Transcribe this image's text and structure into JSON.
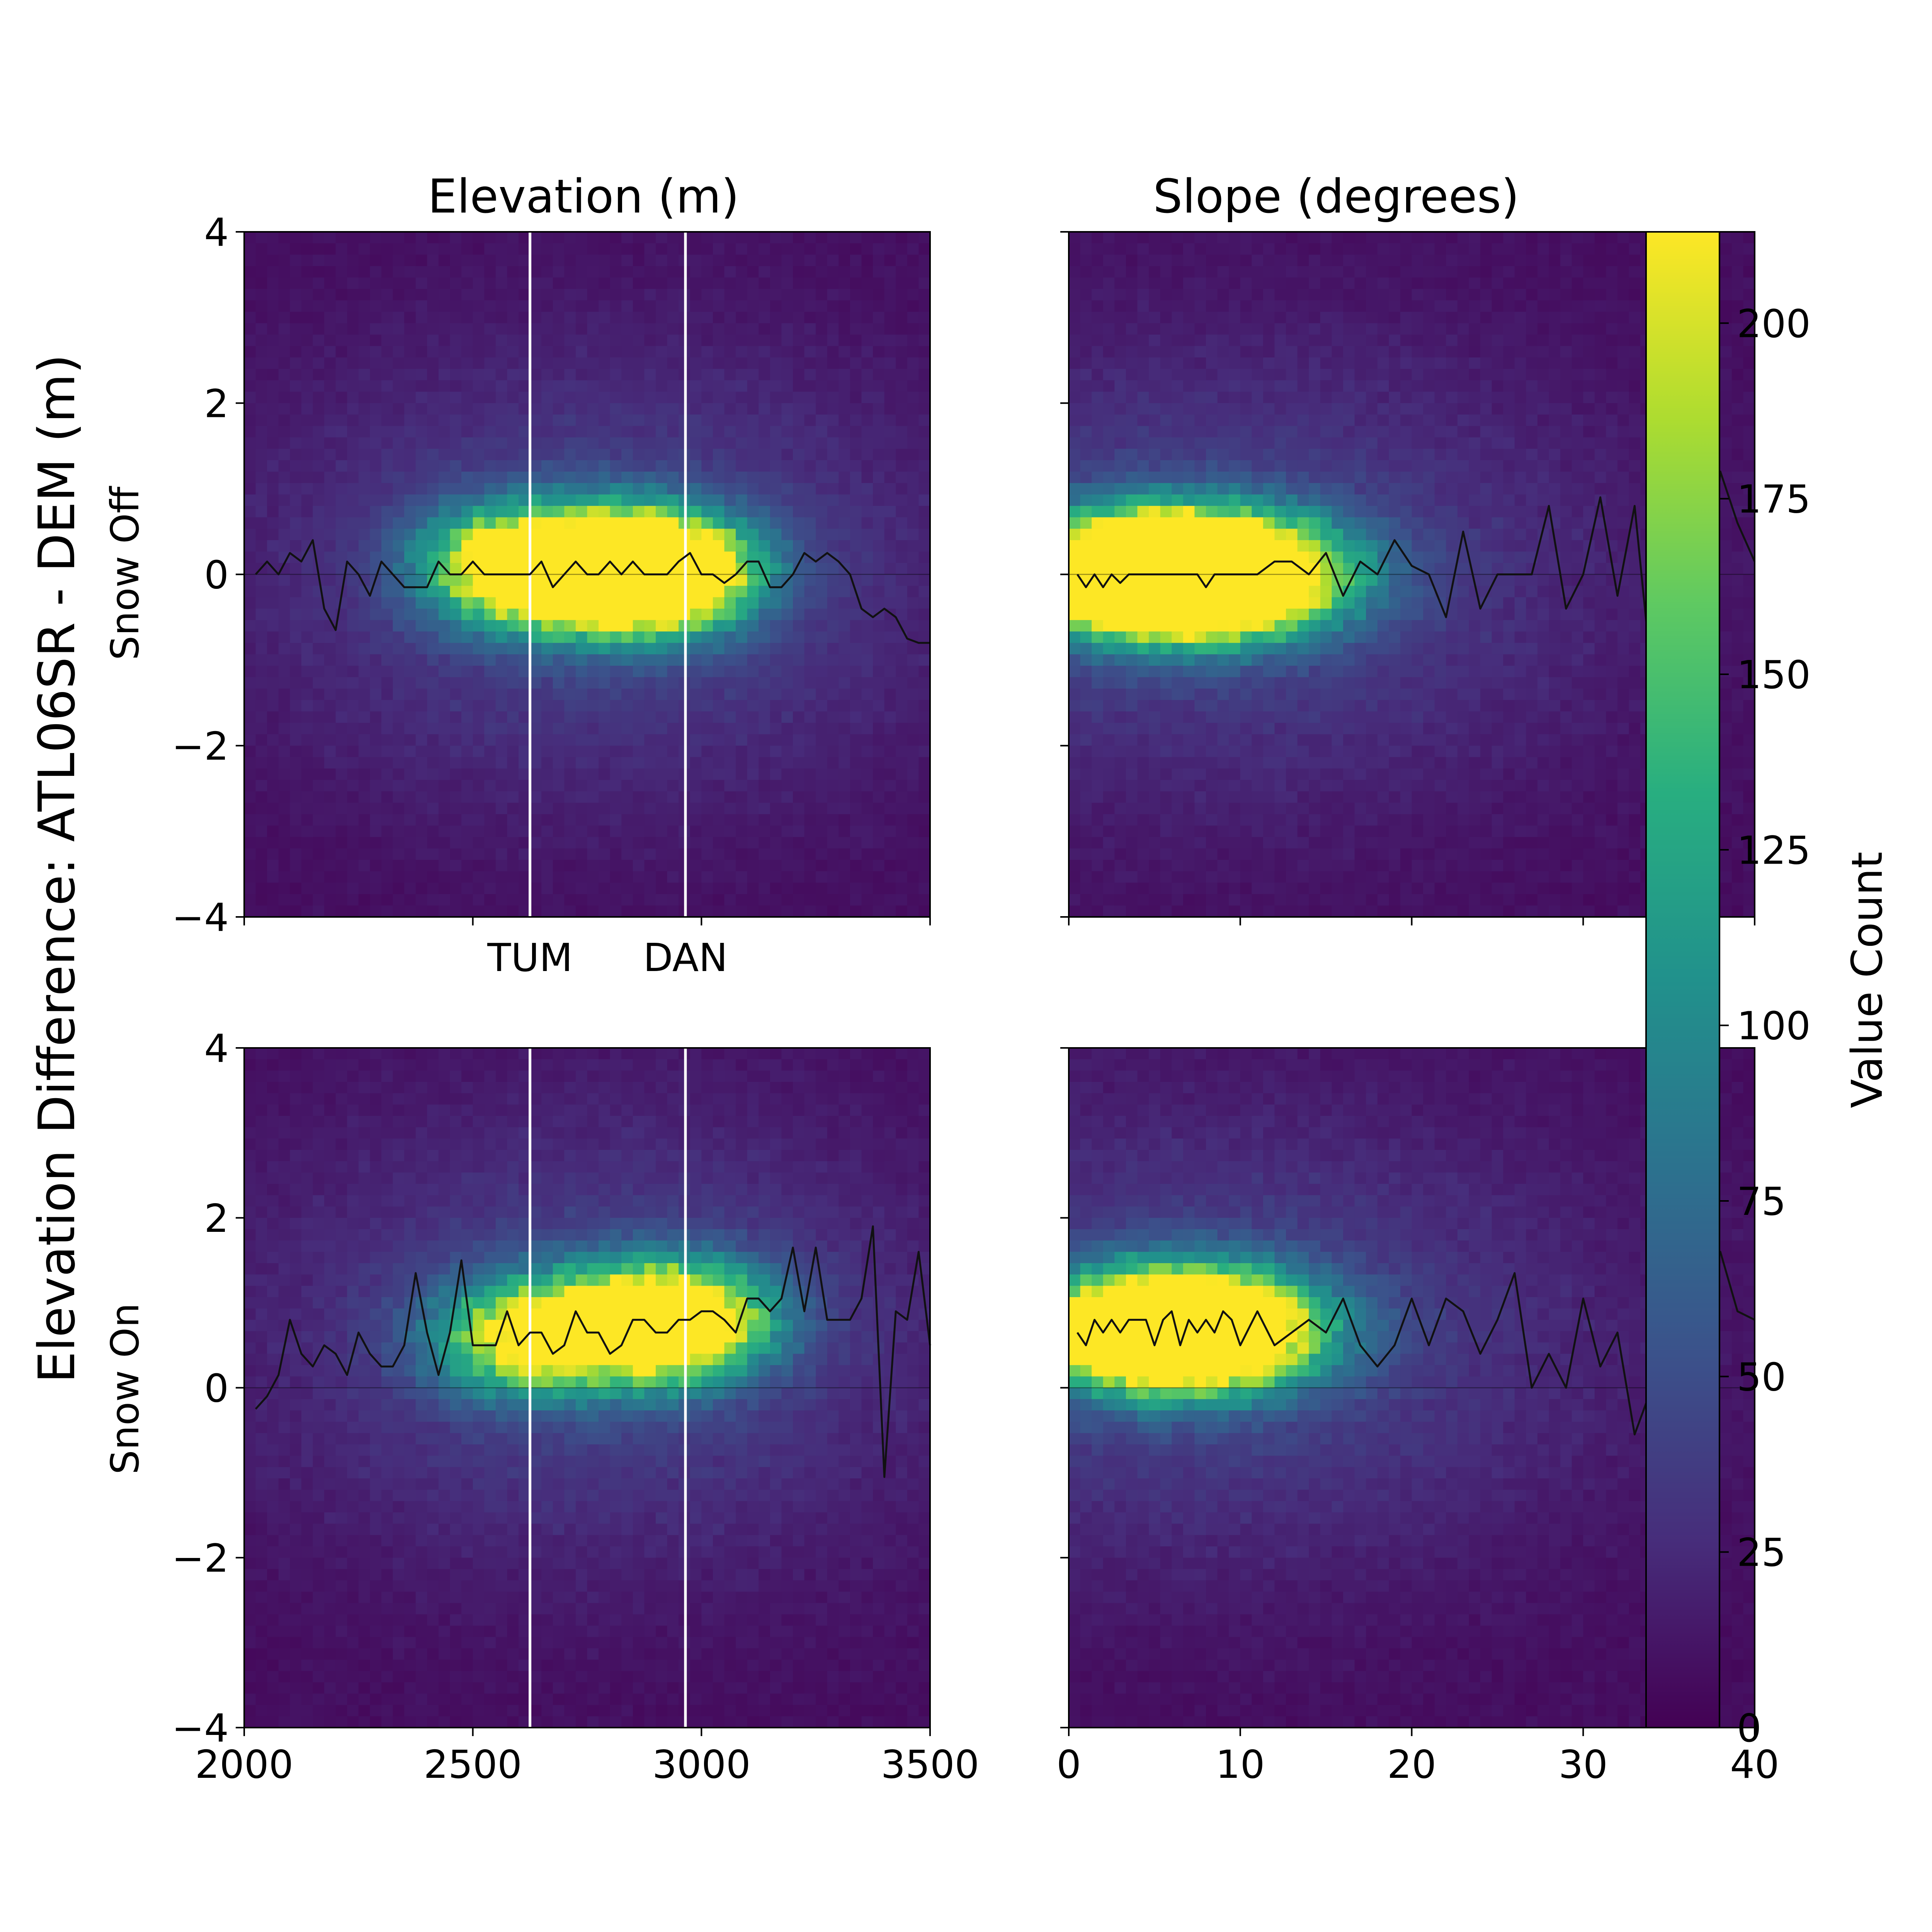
{
  "figure": {
    "ylabel": "Elevation Difference: ATL06SR - DEM (m)",
    "col_titles": [
      "Elevation (m)",
      "Slope (degrees)"
    ],
    "row_labels": [
      "Snow Off",
      "Snow On"
    ],
    "colorbar": {
      "label": "Value Count",
      "ticks": [
        0,
        25,
        50,
        75,
        100,
        125,
        150,
        175,
        200
      ],
      "range": [
        0,
        213
      ],
      "colormap": "viridis"
    }
  },
  "chart_data": [
    {
      "id": "snowoff-elevation",
      "type": "heatmap",
      "row": "Snow Off",
      "title": "Elevation (m)",
      "xlim": [
        2000,
        3500
      ],
      "ylim": [
        -4,
        4
      ],
      "x_ticks": [],
      "y_ticks": [
        -4,
        -2,
        0,
        2,
        4
      ],
      "reference_lines": [
        {
          "x": 2625,
          "label": "TUM"
        },
        {
          "x": 2965,
          "label": "DAN"
        }
      ],
      "density_centers": [
        [
          2590,
          0.1,
          185
        ],
        [
          2720,
          0.05,
          140
        ],
        [
          2870,
          0.0,
          205
        ],
        [
          2930,
          0.05,
          150
        ]
      ],
      "median_line": {
        "x": [
          2025,
          2050,
          2075,
          2100,
          2125,
          2150,
          2175,
          2200,
          2225,
          2250,
          2275,
          2300,
          2325,
          2350,
          2375,
          2400,
          2425,
          2450,
          2475,
          2500,
          2525,
          2550,
          2575,
          2600,
          2625,
          2650,
          2675,
          2700,
          2725,
          2750,
          2775,
          2800,
          2825,
          2850,
          2875,
          2900,
          2925,
          2950,
          2975,
          3000,
          3025,
          3050,
          3075,
          3100,
          3125,
          3150,
          3175,
          3200,
          3225,
          3250,
          3275,
          3300,
          3325,
          3350,
          3375,
          3400,
          3425,
          3450,
          3475,
          3500
        ],
        "y": [
          0.0,
          0.15,
          0.0,
          0.25,
          0.15,
          0.4,
          -0.4,
          -0.65,
          0.15,
          0.0,
          -0.25,
          0.15,
          0.0,
          -0.15,
          -0.15,
          -0.15,
          0.15,
          0.0,
          0.0,
          0.15,
          0.0,
          0.0,
          0.0,
          0.0,
          0.0,
          0.15,
          -0.15,
          0.0,
          0.15,
          0.0,
          0.0,
          0.15,
          0.0,
          0.15,
          0.0,
          0.0,
          0.0,
          0.15,
          0.25,
          0.0,
          0.0,
          -0.1,
          0.0,
          0.15,
          0.15,
          -0.15,
          -0.15,
          0.0,
          0.25,
          0.15,
          0.25,
          0.15,
          0.0,
          -0.4,
          -0.5,
          -0.4,
          -0.5,
          -0.75,
          -0.8,
          -0.8
        ]
      }
    },
    {
      "id": "snowoff-slope",
      "type": "heatmap",
      "row": "Snow Off",
      "title": "Slope (degrees)",
      "xlim": [
        0,
        40
      ],
      "ylim": [
        -4,
        4
      ],
      "x_ticks": [],
      "y_ticks": [],
      "density_centers": [
        [
          5,
          0.0,
          210
        ],
        [
          8,
          0.0,
          190
        ],
        [
          2.5,
          0.0,
          150
        ],
        [
          11,
          0.0,
          130
        ]
      ],
      "median_line": {
        "x": [
          0.5,
          1,
          1.5,
          2,
          2.5,
          3,
          3.5,
          4,
          4.5,
          5,
          5.5,
          6,
          6.5,
          7,
          7.5,
          8,
          8.5,
          9,
          9.5,
          10,
          11,
          12,
          13,
          14,
          15,
          16,
          17,
          18,
          19,
          20,
          21,
          22,
          23,
          24,
          25,
          26,
          27,
          28,
          29,
          30,
          31,
          32,
          33,
          34,
          35,
          36,
          37,
          38,
          39,
          40
        ],
        "y": [
          0.0,
          -0.15,
          0.0,
          -0.15,
          0.0,
          -0.1,
          0.0,
          0.0,
          0.0,
          0.0,
          0.0,
          0.0,
          0.0,
          0.0,
          0.0,
          -0.15,
          0.0,
          0.0,
          0.0,
          0.0,
          0.0,
          0.15,
          0.15,
          0.0,
          0.25,
          -0.25,
          0.15,
          0.0,
          0.4,
          0.1,
          0.0,
          -0.5,
          0.5,
          -0.4,
          0.0,
          0.0,
          0.0,
          0.8,
          -0.4,
          0.0,
          0.9,
          -0.25,
          0.8,
          -1.2,
          0.15,
          0.0,
          -0.8,
          1.2,
          0.6,
          0.15
        ]
      }
    },
    {
      "id": "snowon-elevation",
      "type": "heatmap",
      "row": "Snow On",
      "title": "",
      "xlim": [
        2000,
        3500
      ],
      "ylim": [
        -4,
        4
      ],
      "x_ticks": [
        2000,
        2500,
        3000,
        3500
      ],
      "y_ticks": [
        -4,
        -2,
        0,
        2,
        4
      ],
      "reference_lines": [
        {
          "x": 2625,
          "label": ""
        },
        {
          "x": 2965,
          "label": ""
        }
      ],
      "density_centers": [
        [
          2620,
          0.6,
          185
        ],
        [
          2880,
          0.75,
          175
        ],
        [
          2960,
          0.8,
          150
        ]
      ],
      "median_line": {
        "x": [
          2025,
          2050,
          2075,
          2100,
          2125,
          2150,
          2175,
          2200,
          2225,
          2250,
          2275,
          2300,
          2325,
          2350,
          2375,
          2400,
          2425,
          2450,
          2475,
          2500,
          2525,
          2550,
          2575,
          2600,
          2625,
          2650,
          2675,
          2700,
          2725,
          2750,
          2775,
          2800,
          2825,
          2850,
          2875,
          2900,
          2925,
          2950,
          2975,
          3000,
          3025,
          3050,
          3075,
          3100,
          3125,
          3150,
          3175,
          3200,
          3225,
          3250,
          3275,
          3300,
          3325,
          3350,
          3375,
          3400,
          3425,
          3450,
          3475,
          3500
        ],
        "y": [
          -0.25,
          -0.1,
          0.15,
          0.8,
          0.4,
          0.25,
          0.5,
          0.4,
          0.15,
          0.65,
          0.4,
          0.25,
          0.25,
          0.5,
          1.35,
          0.65,
          0.15,
          0.65,
          1.5,
          0.5,
          0.5,
          0.5,
          0.9,
          0.5,
          0.65,
          0.65,
          0.4,
          0.5,
          0.9,
          0.65,
          0.65,
          0.4,
          0.5,
          0.8,
          0.8,
          0.65,
          0.65,
          0.8,
          0.8,
          0.9,
          0.9,
          0.8,
          0.65,
          1.05,
          1.05,
          0.9,
          1.05,
          1.65,
          0.9,
          1.65,
          0.8,
          0.8,
          0.8,
          1.05,
          1.9,
          -1.05,
          0.9,
          0.8,
          1.6,
          0.5
        ]
      }
    },
    {
      "id": "snowon-slope",
      "type": "heatmap",
      "row": "Snow On",
      "title": "",
      "xlim": [
        0,
        40
      ],
      "ylim": [
        -4,
        4
      ],
      "x_ticks": [
        0,
        10,
        20,
        30,
        40
      ],
      "y_ticks": [],
      "density_centers": [
        [
          6,
          0.65,
          195
        ],
        [
          9,
          0.7,
          160
        ],
        [
          4,
          0.7,
          150
        ]
      ],
      "median_line": {
        "x": [
          0.5,
          1,
          1.5,
          2,
          2.5,
          3,
          3.5,
          4,
          4.5,
          5,
          5.5,
          6,
          6.5,
          7,
          7.5,
          8,
          8.5,
          9,
          9.5,
          10,
          11,
          12,
          13,
          14,
          15,
          16,
          17,
          18,
          19,
          20,
          21,
          22,
          23,
          24,
          25,
          26,
          27,
          28,
          29,
          30,
          31,
          32,
          33,
          34,
          35,
          36,
          37,
          38,
          39,
          40
        ],
        "y": [
          0.65,
          0.5,
          0.8,
          0.65,
          0.8,
          0.65,
          0.8,
          0.8,
          0.8,
          0.5,
          0.8,
          0.9,
          0.5,
          0.8,
          0.65,
          0.8,
          0.65,
          0.9,
          0.8,
          0.5,
          0.9,
          0.5,
          0.65,
          0.8,
          0.65,
          1.05,
          0.5,
          0.25,
          0.5,
          1.05,
          0.5,
          1.05,
          0.9,
          0.4,
          0.8,
          1.35,
          0.0,
          0.4,
          0.0,
          1.05,
          0.25,
          0.65,
          -0.55,
          0.0,
          0.8,
          0.25,
          1.5,
          1.6,
          0.9,
          0.8
        ]
      }
    }
  ]
}
